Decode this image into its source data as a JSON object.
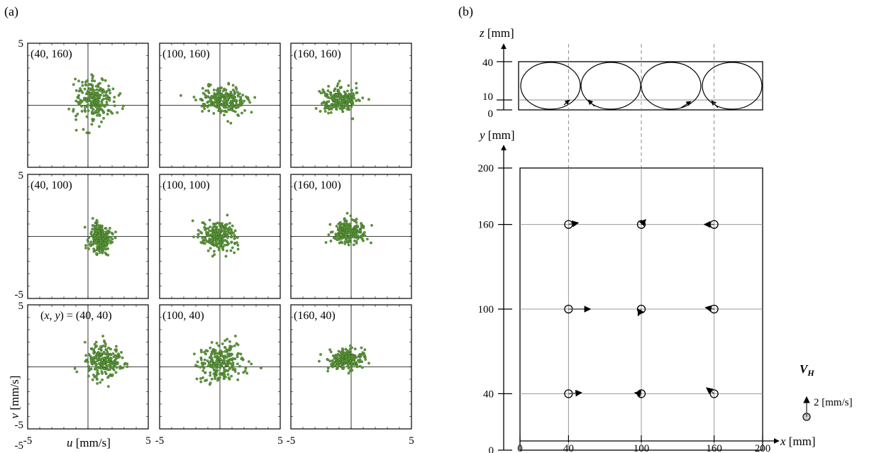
{
  "panel_labels": {
    "a": "(a)",
    "b": "(b)"
  },
  "chart_data": [
    {
      "type": "scatter",
      "panel": "(a)",
      "description": "3x3 grid of velocity scatter plots (u, v) at probe positions",
      "xlabel": "u [mm/s]",
      "ylabel": "v [mm/s]",
      "xlim": [
        -5,
        5
      ],
      "ylim": [
        -5,
        5
      ],
      "tick_labels": {
        "x_min": "-5",
        "x_max": "5",
        "y_min": "-5",
        "y_max": "5"
      },
      "marker_color": "#5f9a3c",
      "subplots": [
        {
          "label": "(40, 160)",
          "mean": [
            0.6,
            0.5
          ],
          "spread": [
            1.5,
            1.6
          ],
          "n": 230
        },
        {
          "label": "(100, 160)",
          "mean": [
            0.2,
            0.4
          ],
          "spread": [
            1.8,
            1.0
          ],
          "n": 230
        },
        {
          "label": "(160, 160)",
          "mean": [
            -1.0,
            0.5
          ],
          "spread": [
            1.4,
            0.9
          ],
          "n": 230
        },
        {
          "label": "(40, 100)",
          "mean": [
            1.0,
            -0.2
          ],
          "spread": [
            0.8,
            1.2
          ],
          "n": 230
        },
        {
          "label": "(100, 100)",
          "mean": [
            -0.1,
            0.0
          ],
          "spread": [
            1.4,
            1.0
          ],
          "n": 230
        },
        {
          "label": "(160, 100)",
          "mean": [
            -0.2,
            0.4
          ],
          "spread": [
            1.3,
            0.8
          ],
          "n": 230
        },
        {
          "label": "(40, 40)",
          "label_prefix": "(x, y) =",
          "mean": [
            1.2,
            0.5
          ],
          "spread": [
            1.4,
            1.2
          ],
          "n": 230
        },
        {
          "label": "(100, 40)",
          "mean": [
            0.1,
            0.3
          ],
          "spread": [
            1.7,
            1.2
          ],
          "n": 230
        },
        {
          "label": "(160, 40)",
          "mean": [
            -0.4,
            0.6
          ],
          "spread": [
            1.4,
            0.7
          ],
          "n": 230
        }
      ]
    },
    {
      "type": "vector-map",
      "panel": "(b)",
      "top": {
        "ylabel": "z [mm]",
        "ticks": [
          "0",
          "10",
          "40"
        ],
        "cells": 4
      },
      "bottom": {
        "xlabel": "x [mm]",
        "ylabel": "y [mm]",
        "xticks": [
          "0",
          "40",
          "100",
          "160",
          "200"
        ],
        "yticks": [
          "0",
          "40",
          "100",
          "160",
          "200"
        ],
        "xlim": [
          0,
          200
        ],
        "ylim": [
          0,
          200
        ],
        "vectors": [
          {
            "x": 40,
            "y": 160,
            "u": 0.9,
            "v": 0.15
          },
          {
            "x": 100,
            "y": 160,
            "u": 0.4,
            "v": 0.45
          },
          {
            "x": 160,
            "y": 160,
            "u": -0.9,
            "v": 0.0
          },
          {
            "x": 40,
            "y": 100,
            "u": 2.0,
            "v": 0.0
          },
          {
            "x": 100,
            "y": 100,
            "u": -0.3,
            "v": -0.6
          },
          {
            "x": 160,
            "y": 100,
            "u": -0.8,
            "v": 0.15
          },
          {
            "x": 40,
            "y": 40,
            "u": 1.2,
            "v": 0.1
          },
          {
            "x": 100,
            "y": 40,
            "u": -0.6,
            "v": 0.1
          },
          {
            "x": 160,
            "y": 40,
            "u": -0.7,
            "v": 0.55
          }
        ]
      },
      "legend": {
        "symbol": "V_H",
        "symbol_main": "V",
        "symbol_sub": "H",
        "scale_label": "2 [mm/s]",
        "scale_value": 2
      }
    }
  ]
}
